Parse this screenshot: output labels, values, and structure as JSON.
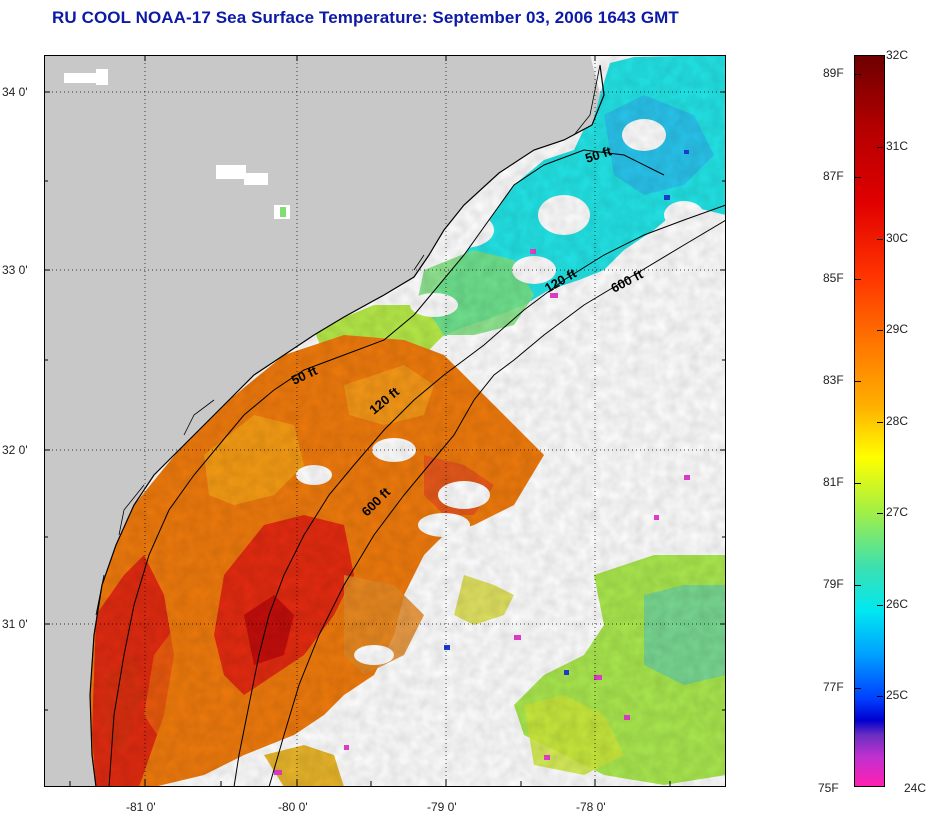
{
  "title": "RU COOL  NOAA-17  Sea Surface Temperature:  September 03, 2006 1643 GMT",
  "map": {
    "lat_labels": [
      "34 0'",
      "33 0'",
      "32 0'",
      "31 0'"
    ],
    "lon_labels": [
      "-81 0'",
      "-80 0'",
      "-79 0'",
      "-78 0'"
    ],
    "contours": [
      "50 ft",
      "120 ft",
      "600 ft"
    ],
    "contour_labels": [
      "50 ft",
      "120 ft",
      "600 ft",
      "50 ft",
      "120 ft",
      "600 ft"
    ],
    "colors": {
      "land": "#c8c8c8",
      "no_data": "#ffffff"
    }
  },
  "colorbar": {
    "celsius": [
      "32C",
      "31C",
      "30C",
      "29C",
      "28C",
      "27C",
      "26C",
      "25C",
      "24C"
    ],
    "fahrenheit": [
      "89F",
      "87F",
      "85F",
      "83F",
      "81F",
      "79F",
      "77F",
      "75F"
    ]
  }
}
